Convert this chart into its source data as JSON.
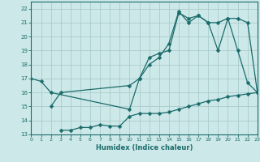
{
  "xlabel": "Humidex (Indice chaleur)",
  "xlim": [
    0,
    23
  ],
  "ylim": [
    13,
    22.5
  ],
  "yticks": [
    13,
    14,
    15,
    16,
    17,
    18,
    19,
    20,
    21,
    22
  ],
  "xticks": [
    0,
    1,
    2,
    3,
    4,
    5,
    6,
    7,
    8,
    9,
    10,
    11,
    12,
    13,
    14,
    15,
    16,
    17,
    18,
    19,
    20,
    21,
    22,
    23
  ],
  "bg_color": "#cde8e8",
  "grid_color": "#aacccc",
  "line_color": "#1a6b6b",
  "line1_x": [
    0,
    1,
    2,
    10,
    11,
    12,
    13,
    14,
    15,
    16,
    17,
    18,
    19,
    20,
    21,
    22,
    23
  ],
  "line1_y": [
    17.0,
    16.8,
    16.0,
    14.8,
    17.0,
    18.5,
    18.8,
    19.0,
    21.7,
    21.3,
    21.5,
    21.0,
    19.0,
    21.3,
    19.0,
    16.7,
    16.0
  ],
  "line2_x": [
    2,
    3,
    10,
    11,
    12,
    13,
    14,
    15,
    16,
    17,
    18,
    19,
    20,
    21,
    22,
    23
  ],
  "line2_y": [
    15.0,
    16.0,
    16.5,
    17.0,
    18.0,
    18.5,
    19.5,
    21.8,
    21.0,
    21.5,
    21.0,
    21.0,
    21.3,
    21.3,
    21.0,
    16.0
  ],
  "line3_x": [
    3,
    4,
    5,
    6,
    7,
    8,
    9,
    10,
    11,
    12,
    13,
    14,
    15,
    16,
    17,
    18,
    19,
    20,
    21,
    22,
    23
  ],
  "line3_y": [
    13.3,
    13.3,
    13.5,
    13.5,
    13.7,
    13.6,
    13.6,
    14.3,
    14.5,
    14.5,
    14.5,
    14.6,
    14.8,
    15.0,
    15.2,
    15.4,
    15.5,
    15.7,
    15.8,
    15.9,
    16.0
  ],
  "markersize": 2.5,
  "linewidth": 0.9
}
